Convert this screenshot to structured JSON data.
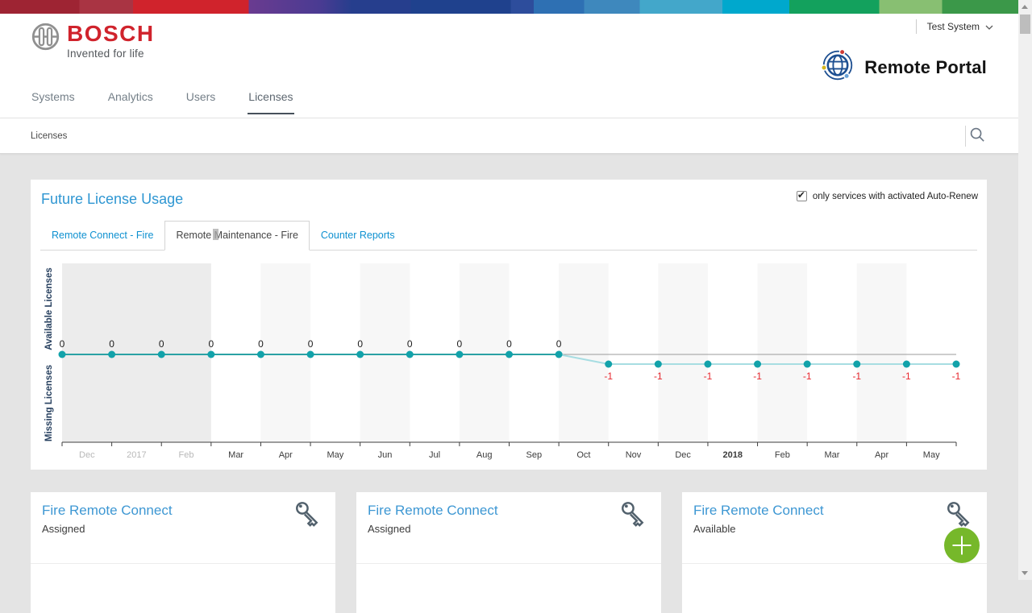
{
  "brand": {
    "company": "BOSCH",
    "tagline": "Invented for life",
    "portal_name": "Remote Portal",
    "system_selector": "Test System",
    "bosch_red": "#d0232c",
    "link_blue": "#2e96d2"
  },
  "icons": {
    "company_logo": "bosch-armature",
    "portal_logo": "globe-orbit",
    "system_selector": "chevron-down",
    "search": "magnifier",
    "license": "key",
    "fab": "plus"
  },
  "nav": {
    "items": [
      {
        "label": "Systems",
        "active": false
      },
      {
        "label": "Analytics",
        "active": false
      },
      {
        "label": "Users",
        "active": false
      },
      {
        "label": "Licenses",
        "active": true
      }
    ]
  },
  "breadcrumb": {
    "label": "Licenses"
  },
  "panel": {
    "title": "Future License Usage",
    "auto_renew": {
      "label": "only services with activated Auto-Renew",
      "checked": true
    },
    "tabs": [
      {
        "label": "Remote Connect - Fire",
        "active": false
      },
      {
        "label": "Remote Maintenance - Fire",
        "active": true
      },
      {
        "label": "Counter Reports",
        "active": false
      }
    ]
  },
  "chart_data": {
    "type": "line",
    "title": "Future License Usage",
    "ylabel_top": "Available Licenses",
    "ylabel_bottom": "Missing Licenses",
    "x_labels": [
      "Dec",
      "2017",
      "Feb",
      "Mar",
      "Apr",
      "May",
      "Jun",
      "Jul",
      "Aug",
      "Sep",
      "Oct",
      "Nov",
      "Dec",
      "2018",
      "Feb",
      "Mar",
      "Apr",
      "May"
    ],
    "x_labels_between_ticks": true,
    "emphasized_labels": [
      "2018"
    ],
    "past_month_count": 3,
    "shaded_month_indices": [
      4,
      6,
      8,
      10,
      12,
      14,
      16
    ],
    "point_values": [
      0,
      0,
      0,
      0,
      0,
      0,
      0,
      0,
      0,
      0,
      0,
      -1,
      -1,
      -1,
      -1,
      -1,
      -1,
      -1,
      -1
    ],
    "zero_reference_line": true,
    "grid": false,
    "legend": false,
    "colors": {
      "line": "#2aa1a4",
      "line_deficit": "#a7dde2",
      "point": "#12a2aa",
      "zero_ref": "#9b9b9b",
      "negative_label": "#e6252c",
      "positive_label": "#1c1c1c",
      "past_label": "#b8b8b8",
      "axis_label": "#27405f",
      "past_band": "#ececec",
      "alt_band": "#f7f7f7"
    }
  },
  "cards": [
    {
      "title": "Fire Remote Connect",
      "status": "Assigned"
    },
    {
      "title": "Fire Remote Connect",
      "status": "Assigned"
    },
    {
      "title": "Fire Remote Connect",
      "status": "Available"
    }
  ]
}
